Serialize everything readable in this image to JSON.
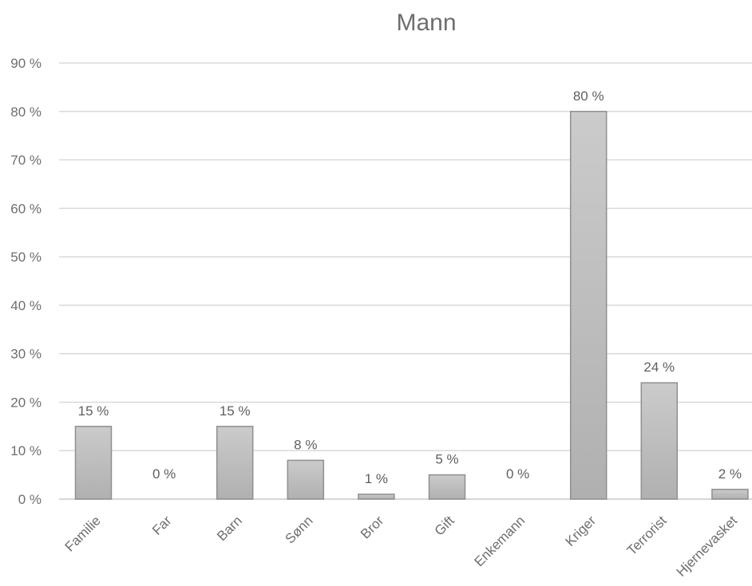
{
  "chart_data": {
    "type": "bar",
    "title": "Mann",
    "xlabel": "",
    "ylabel": "",
    "categories": [
      "Familie",
      "Far",
      "Barn",
      "Sønn",
      "Bror",
      "Gift",
      "Enkemann",
      "Kriger",
      "Terrorist",
      "Hjernevasket"
    ],
    "values": [
      15,
      0,
      15,
      8,
      1,
      5,
      0,
      80,
      24,
      2
    ],
    "data_labels": [
      "15 %",
      "0 %",
      "15 %",
      "8 %",
      "1 %",
      "5 %",
      "0 %",
      "80 %",
      "24 %",
      "2 %"
    ],
    "ylim": [
      0,
      90
    ],
    "yticks": [
      "0 %",
      "10 %",
      "20 %",
      "30 %",
      "40 %",
      "50 %",
      "60 %",
      "70 %",
      "80 %",
      "90 %"
    ],
    "grid": true,
    "legend": "none",
    "colors": {
      "bar_top": "#cbcbcb",
      "bar_bottom": "#b0b0b0",
      "bar_stroke": "#8f8f8f",
      "grid": "#d9d9d9",
      "text": "#6e6e6e"
    }
  }
}
